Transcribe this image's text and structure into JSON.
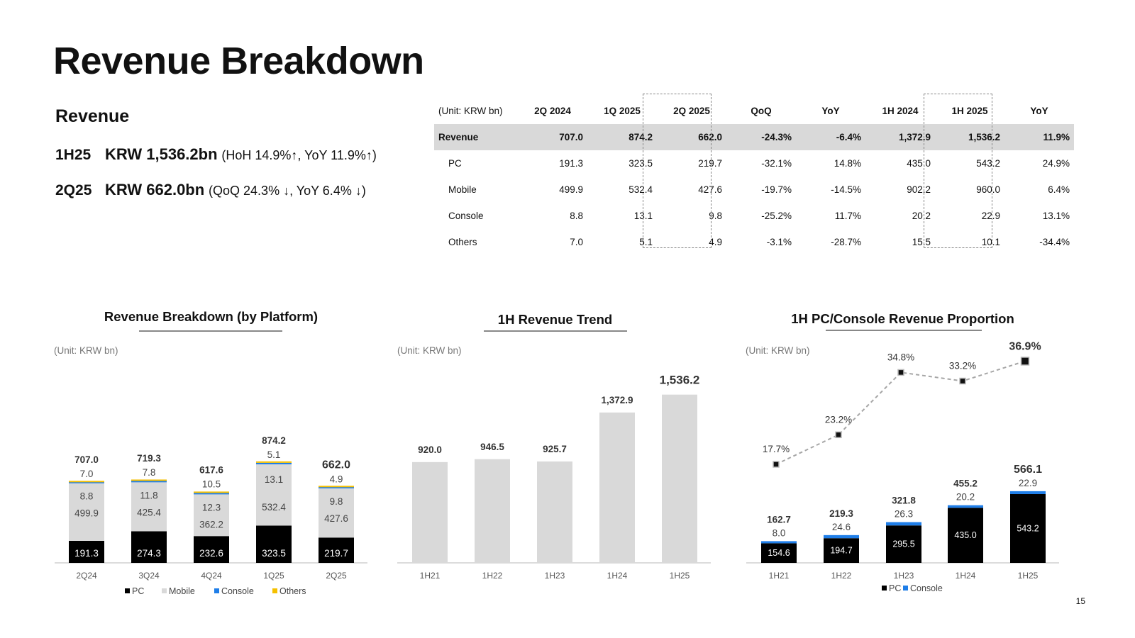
{
  "title": "Revenue Breakdown",
  "revenue_section": {
    "heading": "Revenue",
    "kpi1": {
      "period": "1H25",
      "value": "KRW 1,536.2bn",
      "detail": "(HoH 14.9%↑, YoY 11.9%↑)"
    },
    "kpi2": {
      "period": "2Q25",
      "value": "KRW 662.0bn",
      "detail": "(QoQ 24.3% ↓, YoY 6.4% ↓)"
    }
  },
  "table": {
    "unit": "(Unit: KRW bn)",
    "columns": [
      "2Q 2024",
      "1Q 2025",
      "2Q 2025",
      "QoQ",
      "YoY",
      "1H 2024",
      "1H 2025",
      "YoY"
    ],
    "rows": [
      {
        "label": "Revenue",
        "values": [
          "707.0",
          "874.2",
          "662.0",
          "-24.3%",
          "-6.4%",
          "1,372.9",
          "1,536.2",
          "11.9%"
        ]
      },
      {
        "label": "PC",
        "values": [
          "191.3",
          "323.5",
          "219.7",
          "-32.1%",
          "14.8%",
          "435.0",
          "543.2",
          "24.9%"
        ]
      },
      {
        "label": "Mobile",
        "values": [
          "499.9",
          "532.4",
          "427.6",
          "-19.7%",
          "-14.5%",
          "902.2",
          "960.0",
          "6.4%"
        ]
      },
      {
        "label": "Console",
        "values": [
          "8.8",
          "13.1",
          "9.8",
          "-25.2%",
          "11.7%",
          "20.2",
          "22.9",
          "13.1%"
        ]
      },
      {
        "label": "Others",
        "values": [
          "7.0",
          "5.1",
          "4.9",
          "-3.1%",
          "-28.7%",
          "15.5",
          "10.1",
          "-34.4%"
        ]
      }
    ]
  },
  "colors": {
    "pc": "#000000",
    "mobile": "#d9d9d9",
    "console": "#1f7ee8",
    "others": "#f5c000",
    "line": "#a6a6a6"
  },
  "chart_data": [
    {
      "type": "bar",
      "stacked": true,
      "title": "Revenue Breakdown (by Platform)",
      "unit": "(Unit: KRW bn)",
      "categories": [
        "2Q24",
        "3Q24",
        "4Q24",
        "1Q25",
        "2Q25"
      ],
      "series": [
        {
          "name": "PC",
          "values": [
            191.3,
            274.3,
            232.6,
            323.5,
            219.7
          ]
        },
        {
          "name": "Mobile",
          "values": [
            499.9,
            425.4,
            362.2,
            532.4,
            427.6
          ]
        },
        {
          "name": "Console",
          "values": [
            8.8,
            11.8,
            12.3,
            13.1,
            9.8
          ]
        },
        {
          "name": "Others",
          "values": [
            7.0,
            7.8,
            10.5,
            5.1,
            4.9
          ]
        }
      ],
      "totals": [
        707.0,
        719.3,
        617.6,
        874.2,
        662.0
      ],
      "legend": "bottom"
    },
    {
      "type": "bar",
      "title": "1H Revenue Trend",
      "unit": "(Unit: KRW bn)",
      "categories": [
        "1H21",
        "1H22",
        "1H23",
        "1H24",
        "1H25"
      ],
      "values": [
        920.0,
        946.5,
        925.7,
        1372.9,
        1536.2
      ]
    },
    {
      "type": "bar",
      "stacked": true,
      "title": "1H PC/Console Revenue Proportion",
      "unit": "(Unit: KRW bn)",
      "categories": [
        "1H21",
        "1H22",
        "1H23",
        "1H24",
        "1H25"
      ],
      "series": [
        {
          "name": "PC",
          "values": [
            154.6,
            194.7,
            295.5,
            435.0,
            543.2
          ]
        },
        {
          "name": "Console",
          "values": [
            8.0,
            24.6,
            26.3,
            20.2,
            22.9
          ]
        }
      ],
      "totals": [
        162.7,
        219.3,
        321.8,
        455.2,
        566.1
      ],
      "line": {
        "values": [
          17.7,
          23.2,
          34.8,
          33.2,
          36.9
        ],
        "labels": [
          "17.7%",
          "23.2%",
          "34.8%",
          "33.2%",
          "36.9%"
        ]
      },
      "legend": "bottom"
    }
  ],
  "page_number": "15"
}
